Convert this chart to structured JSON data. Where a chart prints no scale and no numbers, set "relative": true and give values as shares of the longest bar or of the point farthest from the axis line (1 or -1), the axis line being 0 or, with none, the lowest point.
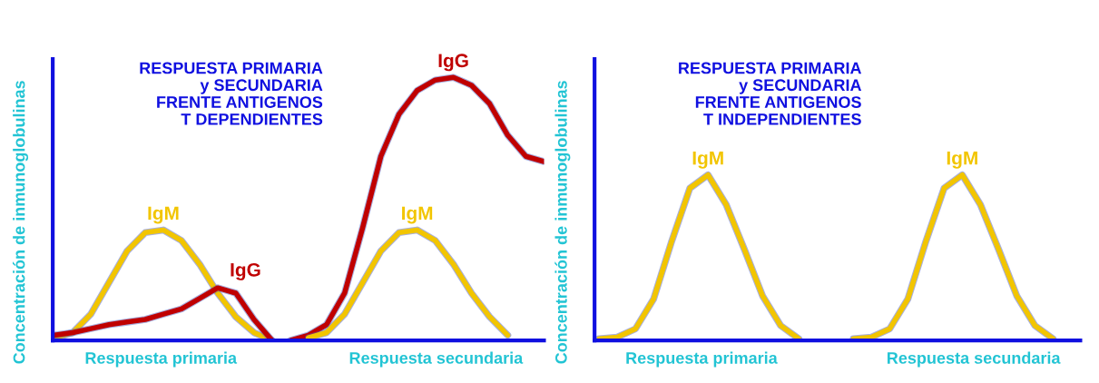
{
  "chart_data": [
    {
      "type": "line",
      "relative": true,
      "title": "RESPUESTA PRIMARIA\ny SECUNDARIA\nFRENTE ANTIGENOS\nT DEPENDIENTES",
      "ylabel": "Concentración de inmunoglobulinas",
      "annotations": [
        "Respuesta primaria",
        "Respuesta secundaria"
      ],
      "categories": [
        null,
        null,
        null,
        null,
        null,
        null,
        null,
        null,
        null,
        null,
        null,
        null,
        null,
        null,
        null,
        null,
        null,
        null,
        null,
        null,
        null,
        null,
        null,
        null,
        null,
        null,
        null,
        null
      ],
      "series": [
        {
          "name": "IgM",
          "color": "#f2c500",
          "values": [
            0.01,
            0.03,
            0.1,
            0.22,
            0.34,
            0.41,
            0.42,
            0.38,
            0.29,
            0.18,
            0.09,
            0.03,
            0.0,
            null,
            null,
            null,
            null,
            null,
            null,
            null,
            null,
            null,
            null,
            null,
            null,
            null,
            null,
            null
          ]
        },
        {
          "name": "IgG",
          "color": "#c00000",
          "values": [
            0.02,
            0.03,
            0.045,
            0.06,
            0.07,
            0.08,
            0.1,
            0.12,
            0.16,
            0.2,
            0.18,
            0.08,
            0.0,
            null,
            null,
            null,
            null,
            null,
            null,
            null,
            null,
            null,
            null,
            null,
            null,
            null,
            null,
            null
          ]
        },
        {
          "name": "IgG",
          "color": "#c00000",
          "values": [
            null,
            null,
            null,
            null,
            null,
            null,
            null,
            null,
            null,
            null,
            null,
            null,
            null,
            0.0,
            0.02,
            0.06,
            0.18,
            0.43,
            0.7,
            0.86,
            0.95,
            0.99,
            1.0,
            0.97,
            0.9,
            0.78,
            0.7,
            0.68
          ]
        },
        {
          "name": "IgM",
          "color": "#f2c500",
          "values": [
            null,
            null,
            null,
            null,
            null,
            null,
            null,
            null,
            null,
            null,
            null,
            null,
            null,
            null,
            0.01,
            0.03,
            0.1,
            0.22,
            0.34,
            0.41,
            0.42,
            0.38,
            0.29,
            0.18,
            0.09,
            0.02,
            null,
            null
          ]
        }
      ]
    },
    {
      "type": "line",
      "relative": true,
      "title": "RESPUESTA PRIMARIA\ny SECUNDARIA\nFRENTE ANTIGENOS\nT INDEPENDIENTES",
      "ylabel": "Concentración de inmunoglobulinas",
      "annotations": [
        "Respuesta primaria",
        "Respuesta secundaria"
      ],
      "categories": [
        null,
        null,
        null,
        null,
        null,
        null,
        null,
        null,
        null,
        null,
        null,
        null,
        null,
        null,
        null,
        null,
        null,
        null,
        null,
        null,
        null,
        null,
        null,
        null,
        null,
        null,
        null
      ],
      "series": [
        {
          "name": "IgM",
          "color": "#f2c500",
          "values": [
            0.01,
            0.02,
            0.07,
            0.25,
            0.6,
            0.92,
            1.0,
            0.82,
            0.55,
            0.27,
            0.09,
            0.01,
            null,
            null,
            null,
            null,
            null,
            null,
            null,
            null,
            null,
            null,
            null,
            null,
            null,
            null,
            null
          ]
        },
        {
          "name": "IgM",
          "color": "#f2c500",
          "values": [
            null,
            null,
            null,
            null,
            null,
            null,
            null,
            null,
            null,
            null,
            null,
            null,
            null,
            null,
            0.01,
            0.02,
            0.07,
            0.25,
            0.6,
            0.92,
            1.0,
            0.82,
            0.55,
            0.27,
            0.09,
            0.01,
            null
          ]
        }
      ]
    }
  ]
}
